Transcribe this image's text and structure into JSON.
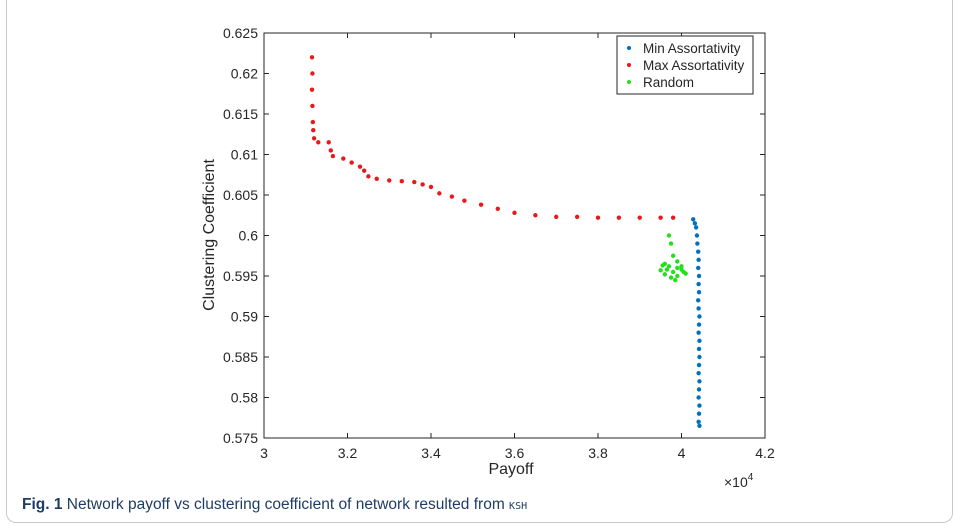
{
  "chart_data": {
    "type": "scatter",
    "xlabel": "Payoff",
    "ylabel": "Clustering Coefficient",
    "x_multiplier_label": "×10",
    "x_multiplier_exponent": "4",
    "xlim": [
      3.0,
      4.2
    ],
    "ylim": [
      0.575,
      0.625
    ],
    "x_ticks": [
      "3",
      "3.2",
      "3.4",
      "3.6",
      "3.8",
      "4",
      "4.2"
    ],
    "y_ticks": [
      "0.575",
      "0.58",
      "0.585",
      "0.59",
      "0.595",
      "0.6",
      "0.605",
      "0.61",
      "0.615",
      "0.62",
      "0.625"
    ],
    "legend_position": "top-right",
    "grid": false,
    "series": [
      {
        "name": "Min Assortativity",
        "color": "#0072BD",
        "points": [
          [
            4.028,
            0.602
          ],
          [
            4.032,
            0.6015
          ],
          [
            4.035,
            0.601
          ],
          [
            4.037,
            0.6
          ],
          [
            4.038,
            0.599
          ],
          [
            4.04,
            0.598
          ],
          [
            4.041,
            0.597
          ],
          [
            4.04,
            0.596
          ],
          [
            4.042,
            0.595
          ],
          [
            4.041,
            0.594
          ],
          [
            4.042,
            0.593
          ],
          [
            4.04,
            0.592
          ],
          [
            4.041,
            0.591
          ],
          [
            4.043,
            0.59
          ],
          [
            4.042,
            0.589
          ],
          [
            4.041,
            0.588
          ],
          [
            4.043,
            0.587
          ],
          [
            4.042,
            0.586
          ],
          [
            4.043,
            0.585
          ],
          [
            4.042,
            0.584
          ],
          [
            4.041,
            0.583
          ],
          [
            4.043,
            0.582
          ],
          [
            4.042,
            0.581
          ],
          [
            4.041,
            0.58
          ],
          [
            4.043,
            0.579
          ],
          [
            4.042,
            0.578
          ],
          [
            4.041,
            0.577
          ],
          [
            4.043,
            0.5765
          ]
        ]
      },
      {
        "name": "Max Assortativity",
        "color": "#E8181B",
        "points": [
          [
            3.115,
            0.622
          ],
          [
            3.116,
            0.62
          ],
          [
            3.115,
            0.618
          ],
          [
            3.116,
            0.616
          ],
          [
            3.117,
            0.614
          ],
          [
            3.118,
            0.613
          ],
          [
            3.12,
            0.612
          ],
          [
            3.13,
            0.6115
          ],
          [
            3.155,
            0.6115
          ],
          [
            3.16,
            0.6105
          ],
          [
            3.165,
            0.6098
          ],
          [
            3.19,
            0.6095
          ],
          [
            3.21,
            0.609
          ],
          [
            3.23,
            0.6085
          ],
          [
            3.24,
            0.608
          ],
          [
            3.25,
            0.6073
          ],
          [
            3.27,
            0.607
          ],
          [
            3.3,
            0.6068
          ],
          [
            3.33,
            0.6067
          ],
          [
            3.36,
            0.6066
          ],
          [
            3.38,
            0.6063
          ],
          [
            3.4,
            0.606
          ],
          [
            3.42,
            0.6052
          ],
          [
            3.45,
            0.6048
          ],
          [
            3.48,
            0.6043
          ],
          [
            3.52,
            0.6038
          ],
          [
            3.56,
            0.6033
          ],
          [
            3.6,
            0.6028
          ],
          [
            3.65,
            0.6025
          ],
          [
            3.7,
            0.6023
          ],
          [
            3.75,
            0.6023
          ],
          [
            3.8,
            0.6022
          ],
          [
            3.85,
            0.6022
          ],
          [
            3.9,
            0.6022
          ],
          [
            3.95,
            0.6022
          ],
          [
            3.98,
            0.6022
          ]
        ]
      },
      {
        "name": "Random",
        "color": "#22E01B",
        "points": [
          [
            3.97,
            0.6
          ],
          [
            3.975,
            0.599
          ],
          [
            3.98,
            0.5975
          ],
          [
            3.96,
            0.5965
          ],
          [
            3.97,
            0.5962
          ],
          [
            3.99,
            0.596
          ],
          [
            4.0,
            0.5958
          ],
          [
            3.95,
            0.5957
          ],
          [
            3.98,
            0.5955
          ],
          [
            4.01,
            0.5953
          ],
          [
            3.96,
            0.5952
          ],
          [
            3.99,
            0.595
          ],
          [
            3.975,
            0.5948
          ],
          [
            4.0,
            0.5962
          ],
          [
            3.985,
            0.5945
          ],
          [
            3.965,
            0.5958
          ],
          [
            4.005,
            0.5955
          ],
          [
            3.955,
            0.5963
          ],
          [
            3.99,
            0.5968
          ]
        ]
      }
    ]
  },
  "caption": {
    "label": "Fig. 1",
    "text": "Network payoff vs clustering coefficient of network resulted from",
    "code": "KSH"
  }
}
